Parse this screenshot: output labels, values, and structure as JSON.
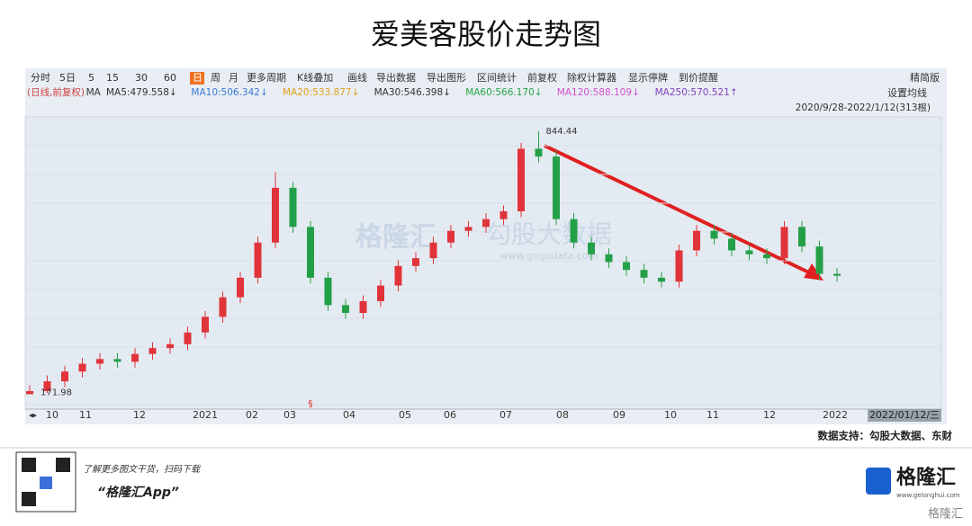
{
  "chart_data": {
    "type": "candlestick",
    "title": "爱美客股价走势图",
    "toolbar": [
      "分时",
      "5日",
      "5",
      "15",
      "30",
      "60",
      "日",
      "周",
      "月",
      "更多周期",
      "K线叠加",
      "画线",
      "导出数据",
      "导出图形",
      "区间统计",
      "前复权",
      "除权计算器",
      "显示停牌",
      "到价提醒"
    ],
    "mode_label": "精简版",
    "ma_labels": [
      {
        "text": "(日线,前复权)",
        "color": "#d04040"
      },
      {
        "text": "MA",
        "color": "#333333"
      },
      {
        "text": "MA5:479.558↓",
        "color": "#333333"
      },
      {
        "text": "MA10:506.342↓",
        "color": "#3a7bd5"
      },
      {
        "text": "MA20:533.877↓",
        "color": "#e0a020"
      },
      {
        "text": "MA30:546.398↓",
        "color": "#333333"
      },
      {
        "text": "MA60:566.170↓",
        "color": "#2aa34a"
      },
      {
        "text": "MA120:588.109↓",
        "color": "#d050d0"
      },
      {
        "text": "MA250:570.521↑",
        "color": "#8040c0"
      }
    ],
    "ma_setting": "设置均线",
    "range_label": "2020/9/28-2022/1/12(313根)",
    "xticks": [
      "10",
      "11",
      "12",
      "2021",
      "02",
      "03",
      "04",
      "05",
      "06",
      "07",
      "08",
      "09",
      "10",
      "11",
      "12",
      "2022"
    ],
    "cursor_label": "2022/01/12/三",
    "marker": "§",
    "watermark": [
      "格隆汇",
      "勾股大数据",
      "www.gogudata.com"
    ],
    "up_color": "#e0343a",
    "down_color": "#23a047",
    "ylim": [
      150,
      870
    ],
    "open": [
      172,
      180,
      205,
      230,
      250,
      262,
      255,
      275,
      290,
      300,
      330,
      370,
      420,
      470,
      560,
      700,
      600,
      470,
      400,
      380,
      410,
      450,
      500,
      520,
      560,
      590,
      600,
      620,
      640,
      800,
      780,
      620,
      560,
      530,
      510,
      490,
      470,
      460,
      540,
      590,
      570,
      540,
      530,
      520,
      600,
      550,
      480
    ],
    "high": [
      195,
      220,
      245,
      265,
      277,
      277,
      290,
      305,
      315,
      345,
      385,
      435,
      485,
      575,
      740,
      715,
      615,
      485,
      415,
      425,
      465,
      515,
      535,
      575,
      605,
      615,
      635,
      655,
      815,
      844.44,
      795,
      635,
      575,
      545,
      525,
      505,
      485,
      555,
      605,
      605,
      585,
      555,
      545,
      615,
      615,
      565,
      495
    ],
    "low": [
      171.98,
      175,
      190,
      215,
      235,
      240,
      240,
      260,
      275,
      285,
      315,
      355,
      405,
      455,
      545,
      585,
      455,
      385,
      365,
      365,
      395,
      435,
      485,
      505,
      545,
      575,
      585,
      605,
      625,
      765,
      605,
      545,
      515,
      495,
      475,
      455,
      445,
      445,
      525,
      555,
      525,
      515,
      505,
      505,
      535,
      465,
      460
    ],
    "close": [
      180,
      205,
      230,
      250,
      262,
      255,
      275,
      290,
      300,
      330,
      370,
      420,
      470,
      560,
      700,
      600,
      470,
      400,
      380,
      410,
      450,
      500,
      520,
      560,
      590,
      600,
      620,
      640,
      800,
      780,
      620,
      560,
      530,
      510,
      490,
      470,
      460,
      540,
      590,
      570,
      540,
      530,
      520,
      600,
      550,
      480,
      475
    ],
    "source": "数据支持：勾股大数据、东财",
    "promo": "了解更多图文干货，扫码下载",
    "app_name": "“格隆汇App”",
    "brand": "格隆汇",
    "brand_url": "www.gelonghui.com"
  }
}
